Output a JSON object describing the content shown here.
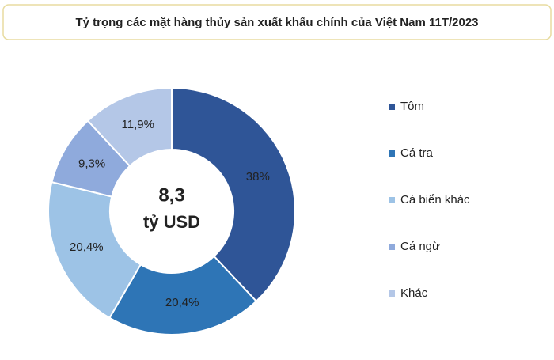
{
  "chart_data": {
    "type": "donut",
    "title": "Tỷ trọng các mặt hàng thủy sản xuất khẩu chính của Việt Nam 11T/2023",
    "center_text": [
      "8,3",
      "tỷ USD"
    ],
    "categories": [
      "Tôm",
      "Cá tra",
      "Cá biển khác",
      "Cá ngừ",
      "Khác"
    ],
    "values": [
      38,
      20.4,
      20.4,
      9.3,
      11.9
    ],
    "value_labels": [
      "38%",
      "20,4%",
      "20,4%",
      "9,3%",
      "11,9%"
    ],
    "colors": [
      "#2f5597",
      "#2e75b6",
      "#9dc3e6",
      "#8faadc",
      "#b4c7e7"
    ],
    "legend": "right"
  }
}
